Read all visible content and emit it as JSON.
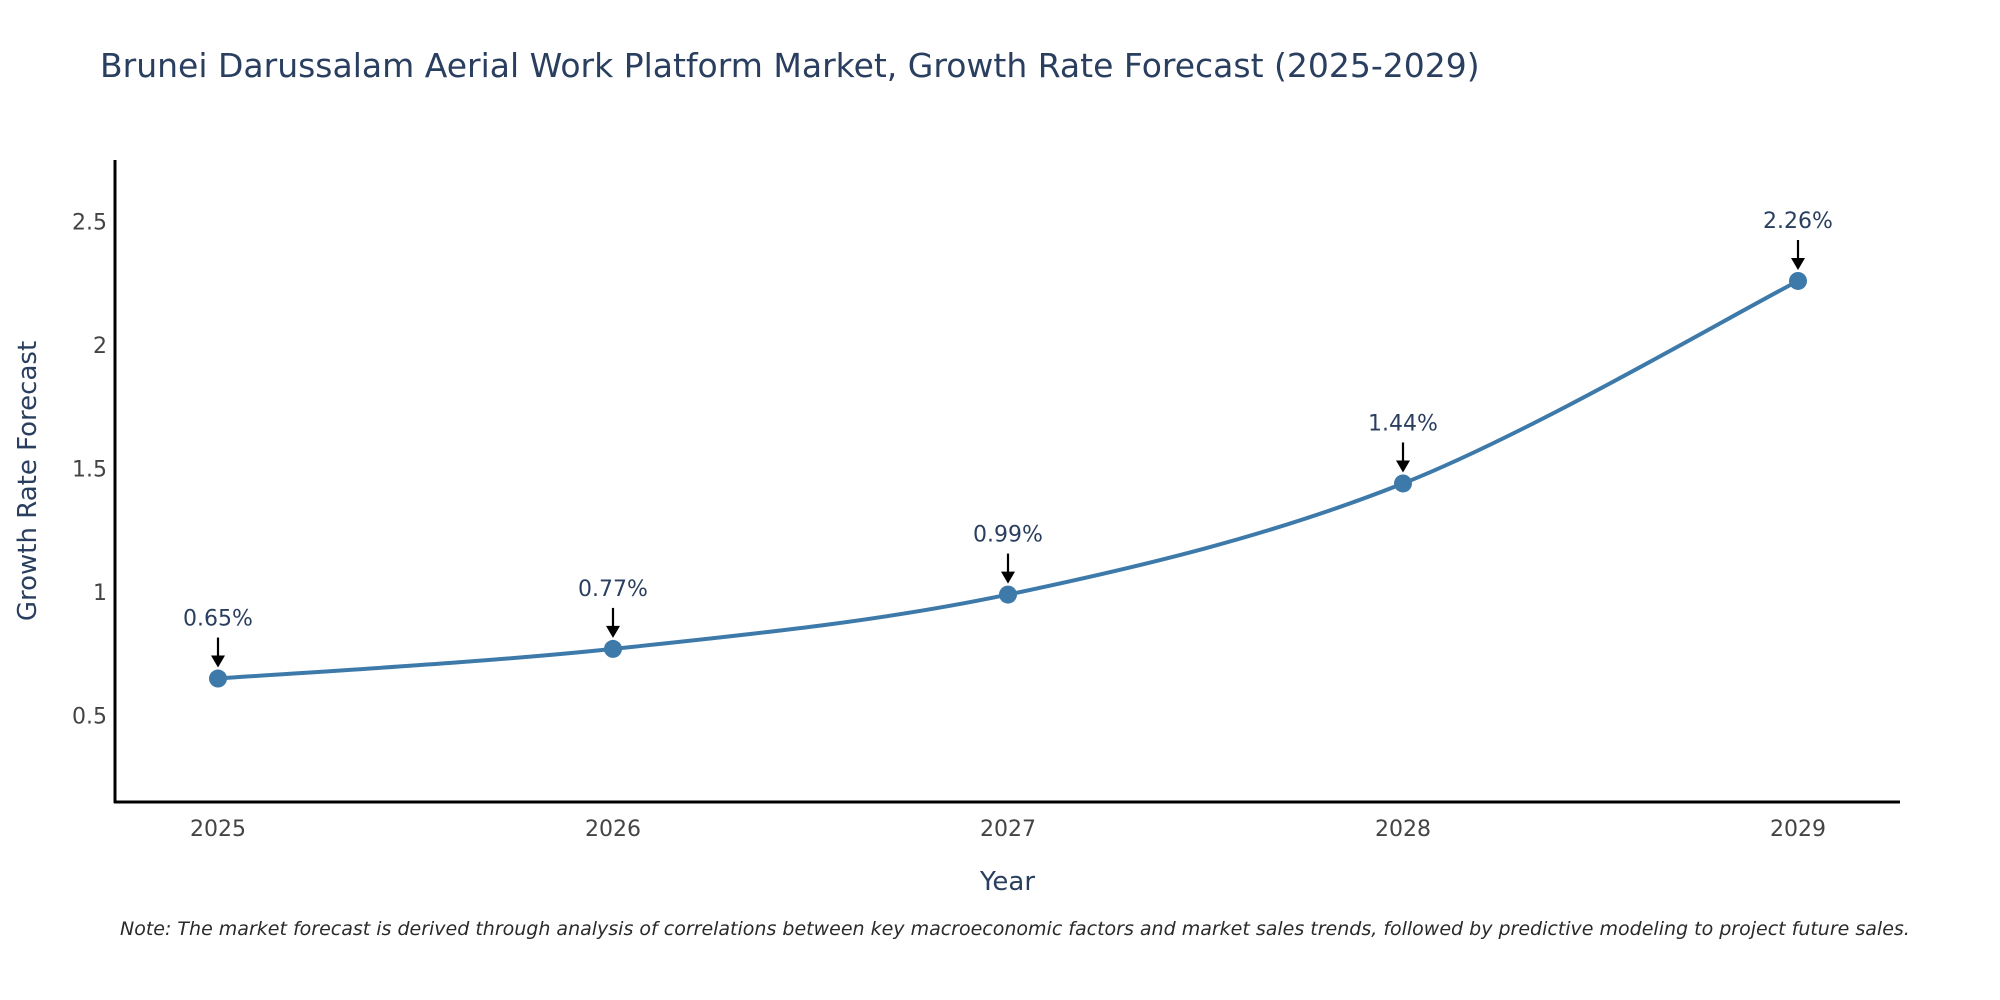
{
  "chart_data": {
    "type": "line",
    "title": "Brunei Darussalam Aerial Work Platform Market, Growth Rate Forecast (2025-2029)",
    "xlabel": "Year",
    "ylabel": "Growth Rate Forecast",
    "categories": [
      "2025",
      "2026",
      "2027",
      "2028",
      "2029"
    ],
    "series": [
      {
        "name": "Growth Rate Forecast",
        "values": [
          0.65,
          0.77,
          0.99,
          1.44,
          2.26
        ]
      }
    ],
    "data_labels": [
      "0.65%",
      "0.77%",
      "0.99%",
      "1.44%",
      "2.26%"
    ],
    "y_ticks": [
      "0.5",
      "1",
      "1.5",
      "2",
      "2.5"
    ],
    "y_tick_values": [
      0.5,
      1,
      1.5,
      2,
      2.5
    ],
    "ylim": [
      0.15,
      2.75
    ],
    "grid": false,
    "line_color": "#3d7aaa",
    "marker_color": "#3d7aaa",
    "note": "Note: The market forecast is derived through analysis of correlations between key macroeconomic factors and market sales trends, followed by predictive modeling to project future sales."
  }
}
